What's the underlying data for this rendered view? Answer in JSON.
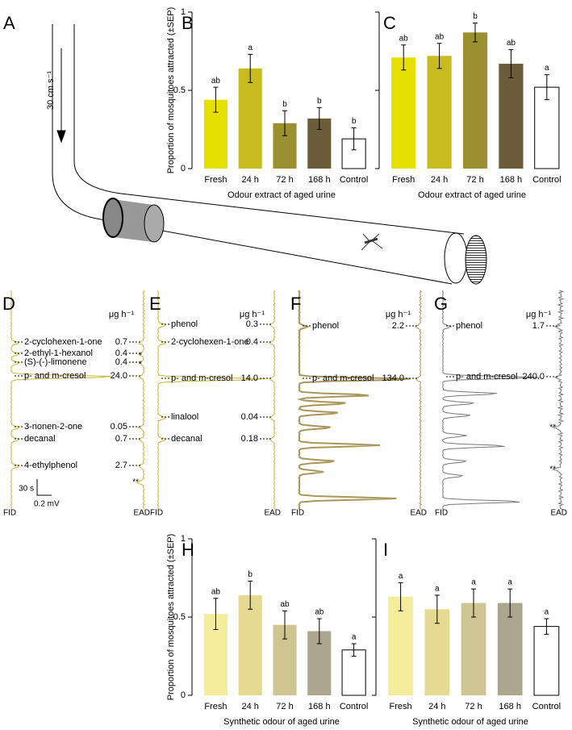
{
  "tunnel": {
    "panel": "A",
    "airflow": "30 cm s⁻¹"
  },
  "chart_data": [
    {
      "type": "bar",
      "panel": "B",
      "y_label": "Proportion of mosquitoes attracted (±SEP)",
      "x_label": "Odour extract of aged urine",
      "categories": [
        "Fresh",
        "24 h",
        "72 h",
        "168 h",
        "Control"
      ],
      "values": [
        0.44,
        0.64,
        0.29,
        0.32,
        0.19
      ],
      "errors": [
        0.08,
        0.09,
        0.08,
        0.07,
        0.07
      ],
      "annotations": [
        "ab",
        "a",
        "b",
        "b",
        "b"
      ],
      "colors": [
        "#e6e000",
        "#c8bb20",
        "#9a9030",
        "#6b5c3a",
        "#ffffff"
      ],
      "ylim": [
        0,
        1
      ],
      "yticks": [
        0,
        0.5,
        1
      ],
      "show_ytick_labels": true
    },
    {
      "type": "bar",
      "panel": "C",
      "x_label": "Odour extract of aged urine",
      "categories": [
        "Fresh",
        "24 h",
        "72 h",
        "168 h",
        "Control"
      ],
      "values": [
        0.71,
        0.72,
        0.87,
        0.67,
        0.52
      ],
      "errors": [
        0.08,
        0.08,
        0.06,
        0.09,
        0.08
      ],
      "annotations": [
        "ab",
        "ab",
        "b",
        "ab",
        "a"
      ],
      "colors": [
        "#e6e000",
        "#c8bb20",
        "#9a9030",
        "#6b5c3a",
        "#ffffff"
      ],
      "ylim": [
        0,
        1
      ],
      "yticks": [
        0,
        0.5,
        1
      ],
      "show_ytick_labels": false
    },
    {
      "type": "bar",
      "panel": "H",
      "y_label": "Proportion of mosquitoes attracted (±SEP)",
      "x_label": "Synthetic odour of aged urine",
      "categories": [
        "Fresh",
        "24 h",
        "72 h",
        "168 h",
        "Control"
      ],
      "values": [
        0.52,
        0.64,
        0.45,
        0.41,
        0.29
      ],
      "errors": [
        0.1,
        0.09,
        0.09,
        0.08,
        0.04
      ],
      "annotations": [
        "ab",
        "b",
        "ab",
        "ab",
        "a"
      ],
      "colors": [
        "#f4ee9c",
        "#e6da92",
        "#cfc592",
        "#aca68e",
        "#ffffff"
      ],
      "ylim": [
        0,
        1
      ],
      "yticks": [
        0,
        0.5,
        1
      ],
      "show_ytick_labels": true
    },
    {
      "type": "bar",
      "panel": "I",
      "x_label": "Synthetic odour of aged urine",
      "categories": [
        "Fresh",
        "24 h",
        "72 h",
        "168 h",
        "Control"
      ],
      "values": [
        0.63,
        0.55,
        0.59,
        0.59,
        0.44
      ],
      "errors": [
        0.09,
        0.09,
        0.09,
        0.09,
        0.05
      ],
      "annotations": [
        "a",
        "a",
        "a",
        "a",
        "a"
      ],
      "colors": [
        "#f4ee9c",
        "#e6da92",
        "#cfc592",
        "#aca68e",
        "#ffffff"
      ],
      "ylim": [
        0,
        1
      ],
      "yticks": [
        0,
        0.5,
        1
      ],
      "show_ytick_labels": false
    }
  ],
  "gc_ead": [
    {
      "panel": "D",
      "unit": "μg h⁻¹",
      "fid": "FID",
      "ead": "EAD",
      "scale_time": "30 s",
      "scale_voltage": "0.2 mV",
      "compounds": [
        {
          "name": "2-cyclohexen-1-one",
          "amount": "0.7"
        },
        {
          "name": "2-ethyl-1-hexanol",
          "amount": "0.4",
          "mark": "*"
        },
        {
          "name": "(S)-(-)-limonene",
          "amount": "0.4",
          "mark": "*"
        },
        {
          "name": "p- and m-cresol",
          "amount": "24.0"
        },
        {
          "name": "3-nonen-2-one",
          "amount": "0.05"
        },
        {
          "name": "decanal",
          "amount": "0.7"
        },
        {
          "name": "4-ethylphenol",
          "amount": "2.7"
        }
      ],
      "markers": [
        "**"
      ]
    },
    {
      "panel": "E",
      "unit": "μg h⁻¹",
      "fid": "FID",
      "ead": "EAD",
      "compounds": [
        {
          "name": "phenol",
          "amount": "0.3"
        },
        {
          "name": "2-cyclohexen-1-one",
          "amount": "0.4"
        },
        {
          "name": "p- and m-cresol",
          "amount": "14.0"
        },
        {
          "name": "linalool",
          "amount": "0.04"
        },
        {
          "name": "decanal",
          "amount": "0.18"
        }
      ]
    },
    {
      "panel": "F",
      "unit": "μg h⁻¹",
      "fid": "FID",
      "ead": "EAD",
      "compounds": [
        {
          "name": "phenol",
          "amount": "2.2"
        },
        {
          "name": "p- and m-cresol",
          "amount": "134.0"
        }
      ]
    },
    {
      "panel": "G",
      "unit": "μg h⁻¹",
      "fid": "FID",
      "ead": "EAD",
      "compounds": [
        {
          "name": "phenol",
          "amount": "1.7"
        },
        {
          "name": "p- and m-cresol",
          "amount": "240.0"
        }
      ],
      "markers": [
        "**",
        "**"
      ]
    }
  ]
}
